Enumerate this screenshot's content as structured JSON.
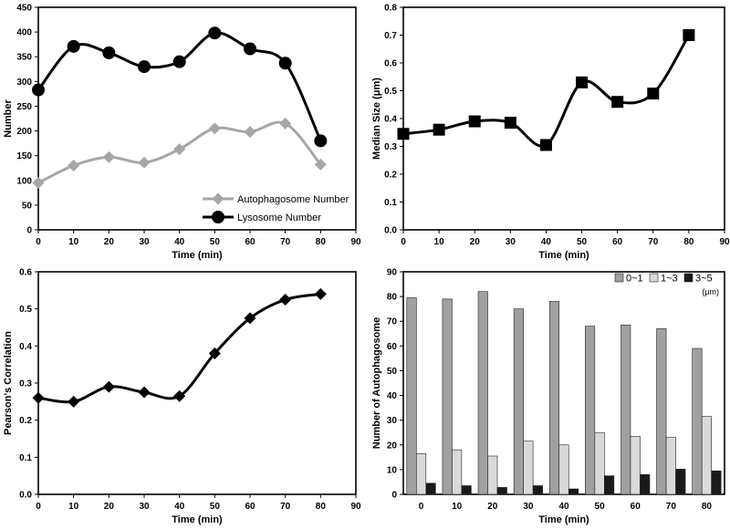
{
  "chart_data": [
    {
      "id": "A",
      "type": "line",
      "title": "",
      "xlabel": "Time (min)",
      "ylabel": "Number",
      "xlim": [
        0,
        90
      ],
      "ylim": [
        0,
        450
      ],
      "xticks": [
        0,
        10,
        20,
        30,
        40,
        50,
        60,
        70,
        80,
        90
      ],
      "yticks": [
        0,
        50,
        100,
        150,
        200,
        250,
        300,
        350,
        400,
        450
      ],
      "legend_position": "bottom-right",
      "series": [
        {
          "name": "Autophagosome Number",
          "color": "#a6a6a6",
          "marker": "diamond",
          "x": [
            0,
            10,
            20,
            30,
            40,
            50,
            60,
            70,
            80
          ],
          "values": [
            95,
            130,
            147,
            136,
            163,
            205,
            198,
            215,
            132
          ]
        },
        {
          "name": "Lysosome Number",
          "color": "#000000",
          "marker": "circle",
          "x": [
            0,
            10,
            20,
            30,
            40,
            50,
            60,
            70,
            80
          ],
          "values": [
            283,
            371,
            358,
            330,
            340,
            398,
            366,
            337,
            180
          ]
        }
      ]
    },
    {
      "id": "B",
      "type": "line",
      "title": "",
      "xlabel": "Time (min)",
      "ylabel": "Median Size (μm)",
      "xlim": [
        0,
        90
      ],
      "ylim": [
        0,
        0.8
      ],
      "xticks": [
        0,
        10,
        20,
        30,
        40,
        50,
        60,
        70,
        80,
        90
      ],
      "yticks": [
        0,
        0.1,
        0.2,
        0.3,
        0.4,
        0.5,
        0.6,
        0.7,
        0.8
      ],
      "series": [
        {
          "name": "Median Size",
          "color": "#000000",
          "marker": "square",
          "x": [
            0,
            10,
            20,
            30,
            40,
            50,
            60,
            70,
            80
          ],
          "values": [
            0.345,
            0.36,
            0.39,
            0.385,
            0.305,
            0.53,
            0.46,
            0.49,
            0.7
          ]
        }
      ]
    },
    {
      "id": "C",
      "type": "line",
      "title": "",
      "xlabel": "Time (min)",
      "ylabel": "Pearson's Correlation",
      "xlim": [
        0,
        90
      ],
      "ylim": [
        0,
        0.6
      ],
      "xticks": [
        0,
        10,
        20,
        30,
        40,
        50,
        60,
        70,
        80,
        90
      ],
      "yticks": [
        0,
        0.1,
        0.2,
        0.3,
        0.4,
        0.5,
        0.6
      ],
      "series": [
        {
          "name": "Pearson's Correlation",
          "color": "#000000",
          "marker": "diamond",
          "x": [
            0,
            10,
            20,
            30,
            40,
            50,
            60,
            70,
            80
          ],
          "values": [
            0.26,
            0.25,
            0.29,
            0.275,
            0.265,
            0.38,
            0.475,
            0.525,
            0.54
          ]
        }
      ]
    },
    {
      "id": "D",
      "type": "bar",
      "title": "",
      "xlabel": "Time (min)",
      "ylabel": "Number of Autophagosome",
      "ylim": [
        0,
        90
      ],
      "yticks": [
        0,
        10,
        20,
        30,
        40,
        50,
        60,
        70,
        80,
        90
      ],
      "categories": [
        "0",
        "10",
        "20",
        "30",
        "40",
        "50",
        "60",
        "70",
        "80"
      ],
      "legend_position": "top-right",
      "legend_unit": "(μm)",
      "series": [
        {
          "name": "0~1",
          "color": "#a0a0a0",
          "values": [
            79.5,
            79,
            82,
            75,
            78,
            68,
            68.5,
            67,
            59
          ]
        },
        {
          "name": "1~3",
          "color": "#d9d9d9",
          "values": [
            16.5,
            18,
            15.5,
            21.5,
            20,
            25,
            23.5,
            23,
            31.5
          ]
        },
        {
          "name": "3~5",
          "color": "#1a1a1a",
          "values": [
            4.5,
            3.5,
            2.8,
            3.5,
            2.2,
            7.5,
            8,
            10.2,
            9.5
          ]
        }
      ]
    }
  ]
}
